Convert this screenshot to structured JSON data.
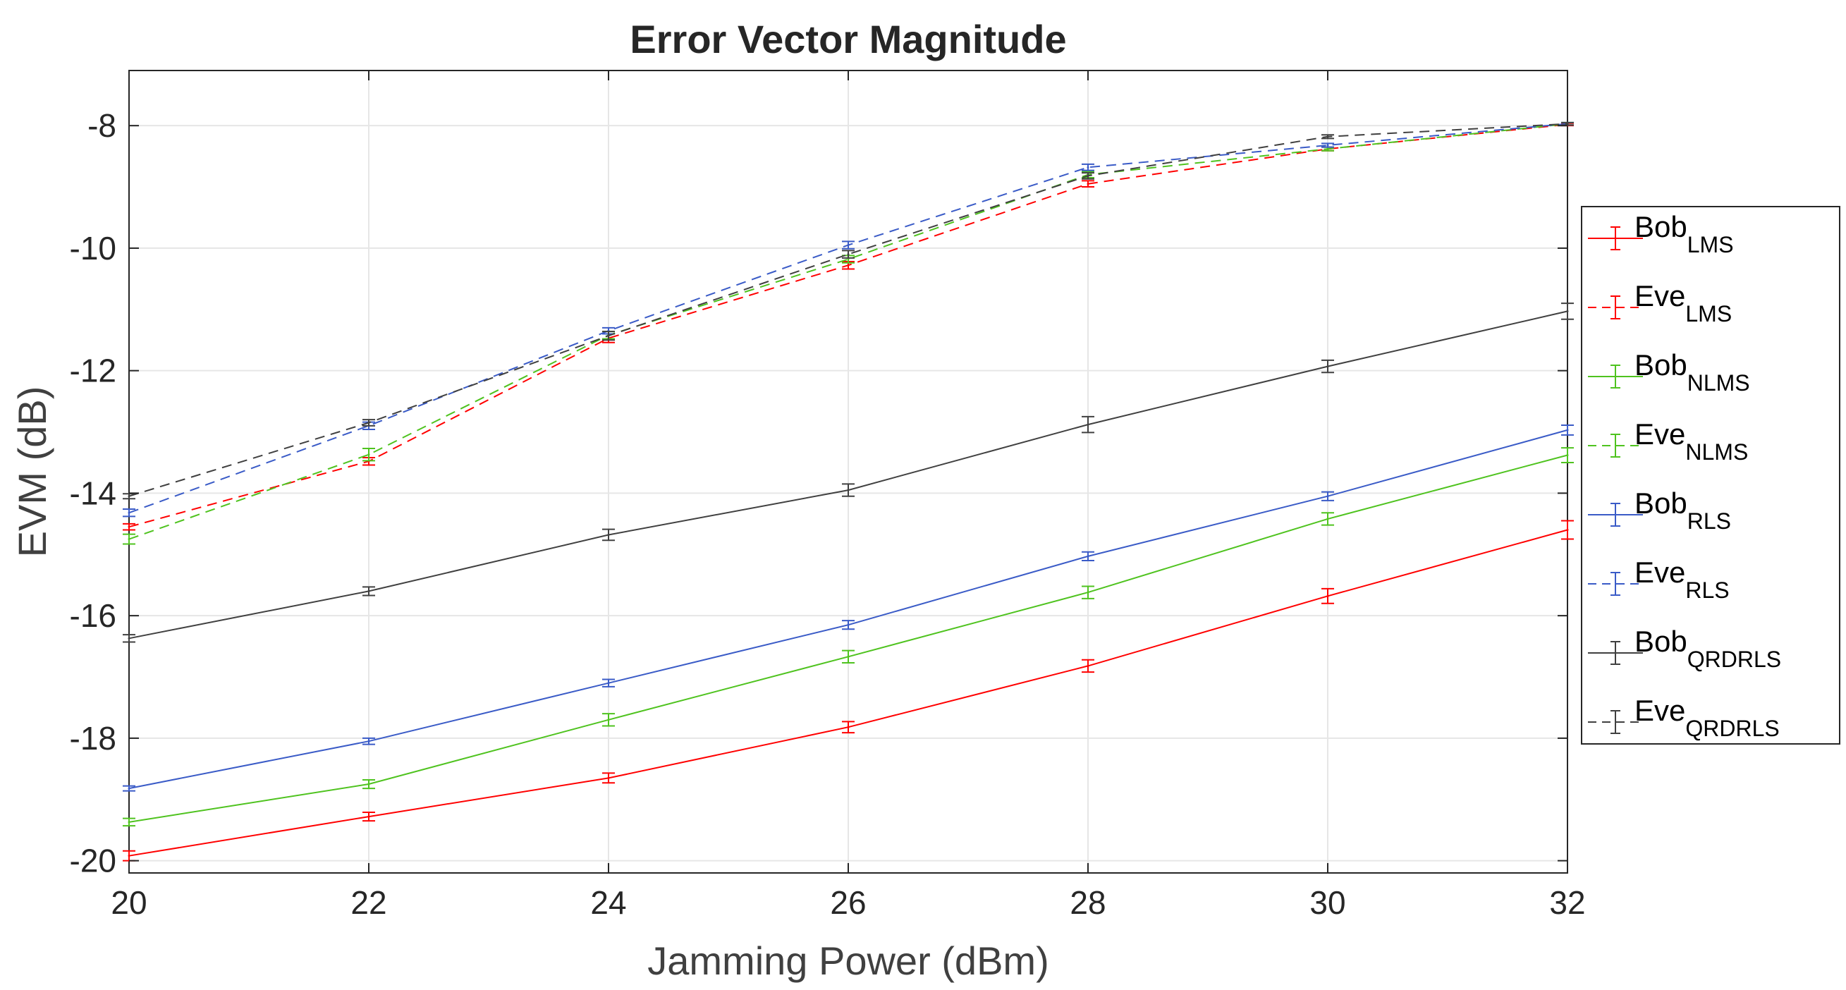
{
  "chart_data": {
    "type": "line",
    "title": "Error Vector Magnitude",
    "xlabel": "Jamming Power (dBm)",
    "ylabel": "EVM (dB)",
    "xlim": [
      20,
      32
    ],
    "ylim": [
      -20.2,
      -7.1
    ],
    "xticks": [
      20,
      22,
      24,
      26,
      28,
      30,
      32
    ],
    "yticks": [
      -20,
      -18,
      -16,
      -14,
      -12,
      -10,
      -8
    ],
    "grid": true,
    "legend_position": "right",
    "x": [
      20,
      22,
      24,
      26,
      28,
      30,
      32
    ],
    "series": [
      {
        "base": "Bob",
        "sub": "LMS",
        "color": "#ff0000",
        "style": "solid",
        "values": [
          -19.92,
          -19.28,
          -18.65,
          -17.82,
          -16.82,
          -15.68,
          -14.6
        ],
        "errors": [
          0.08,
          0.07,
          0.08,
          0.09,
          0.1,
          0.12,
          0.15
        ]
      },
      {
        "base": "Eve",
        "sub": "LMS",
        "color": "#ff0000",
        "style": "dashed",
        "values": [
          -14.55,
          -13.48,
          -11.47,
          -10.28,
          -8.95,
          -8.38,
          -7.98
        ],
        "errors": [
          0.05,
          0.06,
          0.07,
          0.06,
          0.05,
          0.03,
          0.02
        ]
      },
      {
        "base": "Bob",
        "sub": "NLMS",
        "color": "#4fc31f",
        "style": "solid",
        "values": [
          -19.37,
          -18.75,
          -17.7,
          -16.67,
          -15.62,
          -14.42,
          -13.38
        ],
        "errors": [
          0.06,
          0.07,
          0.1,
          0.1,
          0.1,
          0.1,
          0.12
        ]
      },
      {
        "base": "Eve",
        "sub": "NLMS",
        "color": "#4fc31f",
        "style": "dashed",
        "values": [
          -14.75,
          -13.37,
          -11.42,
          -10.18,
          -8.8,
          -8.38,
          -7.97
        ],
        "errors": [
          0.08,
          0.1,
          0.06,
          0.06,
          0.05,
          0.03,
          0.02
        ]
      },
      {
        "base": "Bob",
        "sub": "RLS",
        "color": "#3a5bc7",
        "style": "solid",
        "values": [
          -18.82,
          -18.05,
          -17.1,
          -16.15,
          -15.03,
          -14.05,
          -12.97
        ],
        "errors": [
          0.04,
          0.05,
          0.06,
          0.07,
          0.07,
          0.07,
          0.08
        ]
      },
      {
        "base": "Eve",
        "sub": "RLS",
        "color": "#3a5bc7",
        "style": "dashed",
        "values": [
          -14.32,
          -12.9,
          -11.35,
          -9.95,
          -8.68,
          -8.32,
          -7.97
        ],
        "errors": [
          0.06,
          0.06,
          0.05,
          0.06,
          0.05,
          0.03,
          0.02
        ]
      },
      {
        "base": "Bob",
        "sub": "QRDRLS",
        "color": "#404040",
        "style": "solid",
        "values": [
          -16.37,
          -15.6,
          -14.68,
          -13.95,
          -12.88,
          -11.93,
          -11.03
        ],
        "errors": [
          0.06,
          0.07,
          0.09,
          0.1,
          0.13,
          0.1,
          0.13
        ]
      },
      {
        "base": "Eve",
        "sub": "QRDRLS",
        "color": "#404040",
        "style": "dashed",
        "values": [
          -14.05,
          -12.85,
          -11.43,
          -10.1,
          -8.82,
          -8.18,
          -7.97
        ],
        "errors": [
          0.04,
          0.05,
          0.07,
          0.06,
          0.05,
          0.03,
          0.02
        ]
      }
    ]
  }
}
